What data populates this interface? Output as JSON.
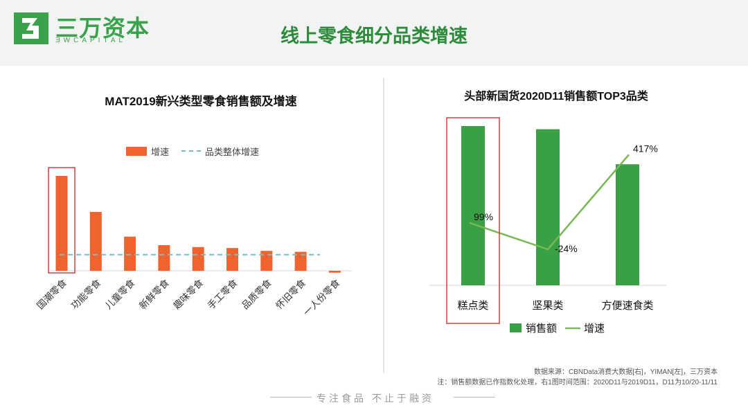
{
  "brand": {
    "name_cn": "三万资本",
    "name_en": "ƎWCAPITAL"
  },
  "page_title": "线上零食细分品类增速",
  "colors": {
    "orange": "#f0622e",
    "green": "#3aa046",
    "line_green": "#77b852",
    "dashed": "#6cc3c7",
    "highlight": "#d63b3b"
  },
  "chart_data": [
    {
      "type": "bar",
      "title": "MAT2019新兴类型零食销售额及增速",
      "categories": [
        "国潮零食",
        "功能零食",
        "儿童零食",
        "新鲜零食",
        "趣味零食",
        "手工零食",
        "品质零食",
        "怀旧零食",
        "一人份零食"
      ],
      "series": [
        {
          "name": "增速",
          "values": [
            100,
            62,
            36,
            27,
            25,
            24,
            21,
            20,
            -2
          ]
        }
      ],
      "reference_line": {
        "name": "品类整体增速",
        "value": 17
      },
      "legend": "top-center",
      "highlighted_category": "国潮零食",
      "ylim": [
        -5,
        110
      ]
    },
    {
      "type": "bar",
      "title": "头部新国货2020D11销售额TOP3品类",
      "categories": [
        "糕点类",
        "坚果类",
        "方便速食类"
      ],
      "series": [
        {
          "name": "销售额",
          "values": [
            100,
            98,
            76
          ]
        },
        {
          "name": "增速",
          "type": "line",
          "values": [
            99,
            -24,
            417
          ],
          "labels": [
            "99%",
            "-24%",
            "417%"
          ]
        }
      ],
      "legend": "bottom-center",
      "highlighted_category": "糕点类"
    }
  ],
  "source_lines": [
    "数据来源：CBNData消费大数据[右]，YIMAN[左]，三万资本",
    "注：销售额数据已作指数化处理，右1图时间范围：2020D11与2019D11，D11为10/20-11/11"
  ],
  "footer": "专注食品  不止于融资"
}
